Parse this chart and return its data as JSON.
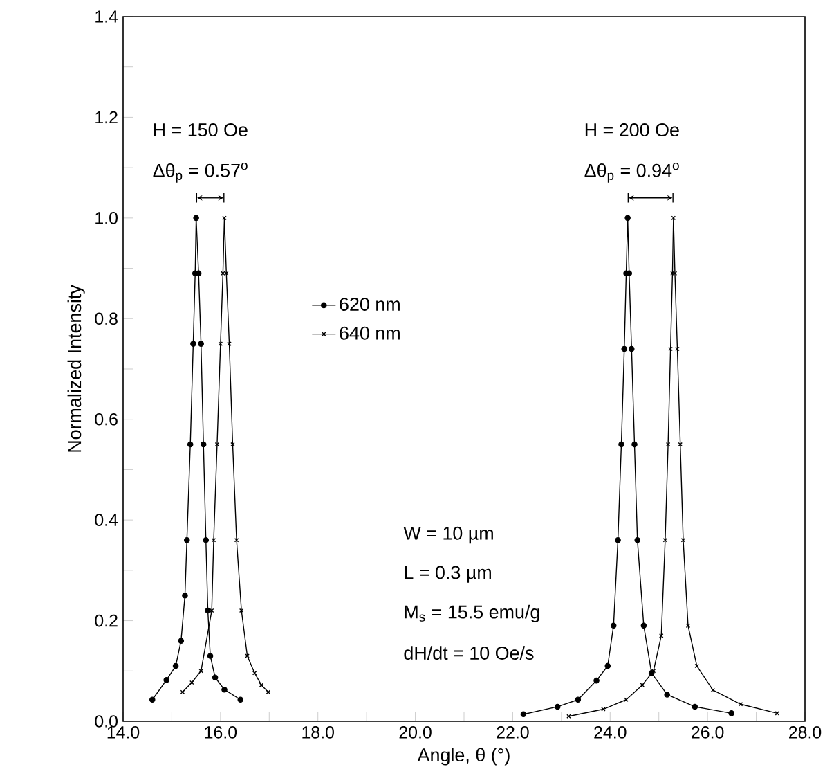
{
  "chart_data": {
    "type": "line",
    "xlabel": "Angle, θ (°)",
    "ylabel": "Normalized Intensity",
    "xlim": [
      14,
      28
    ],
    "ylim": [
      0,
      1.4
    ],
    "xticks": [
      {
        "value": 14,
        "label": "14.0"
      },
      {
        "value": 15,
        "label": null
      },
      {
        "value": 16,
        "label": "16.0"
      },
      {
        "value": 17,
        "label": null
      },
      {
        "value": 18,
        "label": "18.0"
      },
      {
        "value": 19,
        "label": null
      },
      {
        "value": 20,
        "label": "20.0"
      },
      {
        "value": 21,
        "label": null
      },
      {
        "value": 22,
        "label": "22.0"
      },
      {
        "value": 23,
        "label": null
      },
      {
        "value": 24,
        "label": "24.0"
      },
      {
        "value": 25,
        "label": null
      },
      {
        "value": 26,
        "label": "26.0"
      },
      {
        "value": 27,
        "label": null
      },
      {
        "value": 28,
        "label": "28.0"
      }
    ],
    "yticks": [
      {
        "value": 0,
        "label": "0.0"
      },
      {
        "value": 0.1,
        "label": null
      },
      {
        "value": 0.2,
        "label": "0.2"
      },
      {
        "value": 0.3,
        "label": null
      },
      {
        "value": 0.4,
        "label": "0.4"
      },
      {
        "value": 0.5,
        "label": null
      },
      {
        "value": 0.6,
        "label": "0.6"
      },
      {
        "value": 0.7,
        "label": null
      },
      {
        "value": 0.8,
        "label": "0.8"
      },
      {
        "value": 0.9,
        "label": null
      },
      {
        "value": 1.0,
        "label": "1.0"
      },
      {
        "value": 1.1,
        "label": null
      },
      {
        "value": 1.2,
        "label": "1.2"
      },
      {
        "value": 1.3,
        "label": null
      },
      {
        "value": 1.4,
        "label": "1.4"
      }
    ],
    "legend": "center",
    "grid": false,
    "annotations": [
      "H = 150 Oe",
      "Δθ$_{p}$ = 0.57$^{o}$",
      "H = 200 Oe",
      "Δθ$_{p}$ = 0.94$^{o}$",
      "W = 10 µm",
      "L = 0.3 µm",
      "M$_{s}$ = 15.5  emu/g",
      "dH/dt = 10 Oe/s"
    ],
    "series": [
      {
        "name": "620 nm",
        "color": "#000000",
        "marker": "circle",
        "x": [
          14.6,
          14.89,
          15.08,
          15.19,
          15.27,
          15.31,
          15.38,
          15.44,
          15.48,
          15.5,
          15.55,
          15.6,
          15.65,
          15.7,
          15.74,
          15.79,
          15.89,
          16.08,
          16.41,
          null,
          22.22,
          22.92,
          23.34,
          23.72,
          23.95,
          24.07,
          24.16,
          24.23,
          24.29,
          24.33,
          24.36,
          24.39,
          24.44,
          24.5,
          24.56,
          24.69,
          24.85,
          25.17,
          25.74,
          26.49
        ],
        "values": [
          0.043,
          0.082,
          0.11,
          0.16,
          0.25,
          0.36,
          0.55,
          0.75,
          0.89,
          1.0,
          0.89,
          0.75,
          0.55,
          0.36,
          0.22,
          0.13,
          0.087,
          0.063,
          0.043,
          null,
          0.014,
          0.029,
          0.043,
          0.081,
          0.11,
          0.19,
          0.36,
          0.55,
          0.74,
          0.89,
          1.0,
          0.89,
          0.74,
          0.55,
          0.36,
          0.19,
          0.096,
          0.053,
          0.029,
          0.016
        ]
      },
      {
        "name": "640 nm",
        "color": "#000000",
        "marker": "cross",
        "x": [
          15.22,
          15.41,
          15.6,
          15.82,
          15.86,
          15.93,
          16.0,
          16.05,
          16.08,
          16.12,
          16.18,
          16.25,
          16.33,
          16.43,
          16.55,
          16.7,
          16.84,
          16.98,
          null,
          23.15,
          23.86,
          24.33,
          24.66,
          24.89,
          25.05,
          25.13,
          25.19,
          25.24,
          25.28,
          25.3,
          25.33,
          25.38,
          25.44,
          25.5,
          25.6,
          25.78,
          26.11,
          26.68,
          27.43
        ],
        "values": [
          0.058,
          0.077,
          0.1,
          0.22,
          0.36,
          0.55,
          0.75,
          0.89,
          1.0,
          0.89,
          0.75,
          0.55,
          0.36,
          0.22,
          0.13,
          0.096,
          0.072,
          0.058,
          null,
          0.01,
          0.024,
          0.043,
          0.072,
          0.1,
          0.17,
          0.36,
          0.55,
          0.74,
          0.89,
          1.0,
          0.89,
          0.74,
          0.55,
          0.36,
          0.19,
          0.11,
          0.062,
          0.034,
          0.016
        ]
      }
    ]
  }
}
